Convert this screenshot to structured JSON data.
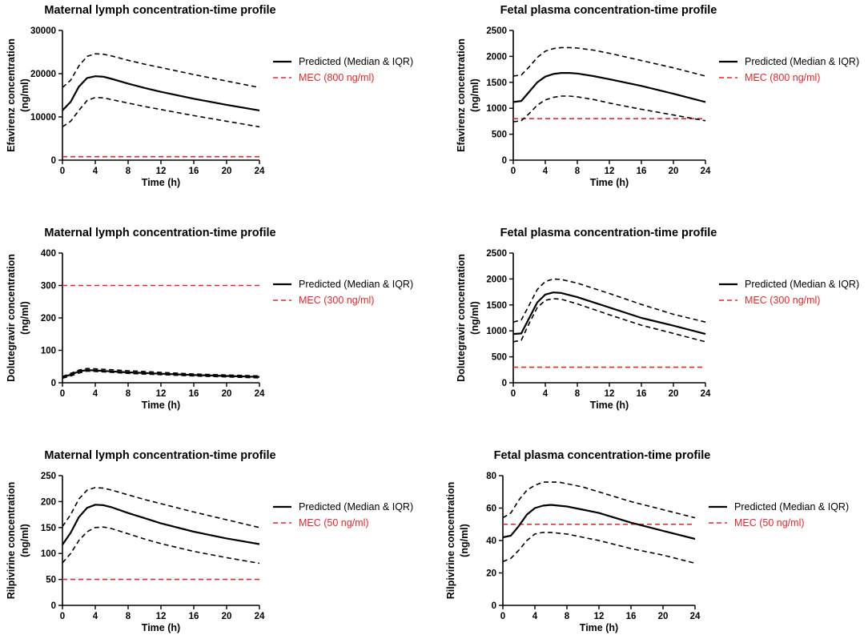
{
  "figure": {
    "colors": {
      "predicted": "#000000",
      "mec": "#e8262a",
      "axis": "#000000"
    }
  },
  "chart_data": [
    {
      "type": "line",
      "title": "Maternal lymph concentration-time profile",
      "xlabel": "Time (h)",
      "ylabel": [
        "Efavirenz concentration",
        "(ng/ml)"
      ],
      "xlim": [
        0,
        24
      ],
      "xticks": [
        0,
        4,
        8,
        12,
        16,
        20,
        24
      ],
      "ylim": [
        0,
        30000
      ],
      "yticks": [
        0,
        10000,
        20000,
        30000
      ],
      "legend": [
        "Predicted (Median & IQR)",
        "MEC (800 ng/ml)"
      ],
      "mec": 800,
      "series": [
        {
          "name": "Median",
          "style": "solid",
          "x": [
            0,
            1,
            2,
            3,
            4,
            5,
            6,
            8,
            10,
            12,
            16,
            20,
            24
          ],
          "y": [
            11500,
            13500,
            17000,
            19000,
            19400,
            19300,
            18800,
            17700,
            16700,
            15800,
            14200,
            12800,
            11500
          ]
        },
        {
          "name": "Q1",
          "style": "dashed",
          "x": [
            0,
            1,
            2,
            3,
            4,
            5,
            6,
            8,
            10,
            12,
            16,
            20,
            24
          ],
          "y": [
            7700,
            9000,
            11500,
            13800,
            14500,
            14400,
            14000,
            13200,
            12400,
            11700,
            10300,
            9000,
            7700
          ]
        },
        {
          "name": "Q3",
          "style": "dashed",
          "x": [
            0,
            1,
            2,
            3,
            4,
            5,
            6,
            8,
            10,
            12,
            16,
            20,
            24
          ],
          "y": [
            16800,
            18500,
            21800,
            24000,
            24600,
            24500,
            24100,
            23100,
            22200,
            21400,
            19800,
            18300,
            16800
          ]
        }
      ]
    },
    {
      "type": "line",
      "title": "Fetal plasma concentration-time profile",
      "xlabel": "Time (h)",
      "ylabel": [
        "Efavirenz concentration",
        "(ng/ml)"
      ],
      "xlim": [
        0,
        24
      ],
      "xticks": [
        0,
        4,
        8,
        12,
        16,
        20,
        24
      ],
      "ylim": [
        0,
        2500
      ],
      "yticks": [
        0,
        500,
        1000,
        1500,
        2000,
        2500
      ],
      "legend": [
        "Predicted (Median & IQR)",
        "MEC (800 ng/ml)"
      ],
      "mec": 800,
      "series": [
        {
          "name": "Median",
          "style": "solid",
          "x": [
            0,
            1,
            2,
            3,
            4,
            5,
            6,
            7,
            8,
            10,
            12,
            16,
            20,
            24
          ],
          "y": [
            1120,
            1140,
            1320,
            1500,
            1610,
            1660,
            1680,
            1680,
            1670,
            1620,
            1560,
            1430,
            1280,
            1120
          ]
        },
        {
          "name": "Q1",
          "style": "dashed",
          "x": [
            0,
            1,
            2,
            3,
            4,
            5,
            6,
            7,
            8,
            10,
            12,
            16,
            20,
            24
          ],
          "y": [
            740,
            760,
            900,
            1060,
            1160,
            1210,
            1235,
            1235,
            1220,
            1170,
            1100,
            980,
            870,
            760
          ]
        },
        {
          "name": "Q3",
          "style": "dashed",
          "x": [
            0,
            1,
            2,
            3,
            4,
            5,
            6,
            7,
            8,
            10,
            12,
            16,
            20,
            24
          ],
          "y": [
            1620,
            1640,
            1800,
            1980,
            2100,
            2150,
            2170,
            2170,
            2160,
            2120,
            2060,
            1920,
            1780,
            1620
          ]
        }
      ]
    },
    {
      "type": "line",
      "title": "Maternal lymph concentration-time profile",
      "xlabel": "Time (h)",
      "ylabel": [
        "Dolutegravir concentration",
        "(ng/ml)"
      ],
      "xlim": [
        0,
        24
      ],
      "xticks": [
        0,
        4,
        8,
        12,
        16,
        20,
        24
      ],
      "ylim": [
        0,
        400
      ],
      "yticks": [
        0,
        100,
        200,
        300,
        400
      ],
      "legend": [
        "Predicted (Median & IQR)",
        "MEC (300 ng/ml)"
      ],
      "mec": 300,
      "series": [
        {
          "name": "Median",
          "style": "solid",
          "x": [
            0,
            1,
            2,
            3,
            4,
            6,
            8,
            12,
            16,
            20,
            24
          ],
          "y": [
            17,
            25,
            35,
            39,
            38,
            35,
            32,
            28,
            24,
            21,
            18
          ]
        },
        {
          "name": "Q1",
          "style": "dashed",
          "x": [
            0,
            1,
            2,
            3,
            4,
            6,
            8,
            12,
            16,
            20,
            24
          ],
          "y": [
            14,
            21,
            30,
            36,
            35,
            32,
            29,
            25,
            21,
            18,
            15
          ]
        },
        {
          "name": "Q3",
          "style": "dashed",
          "x": [
            0,
            1,
            2,
            3,
            4,
            6,
            8,
            12,
            16,
            20,
            24
          ],
          "y": [
            19,
            29,
            39,
            44,
            43,
            40,
            37,
            32,
            27,
            24,
            21
          ]
        }
      ]
    },
    {
      "type": "line",
      "title": "Fetal plasma concentration-time profile",
      "xlabel": "Time (h)",
      "ylabel": [
        "Dolutegravir concentration",
        "(ng/ml)"
      ],
      "xlim": [
        0,
        24
      ],
      "xticks": [
        0,
        4,
        8,
        12,
        16,
        20,
        24
      ],
      "ylim": [
        0,
        2500
      ],
      "yticks": [
        0,
        500,
        1000,
        1500,
        2000,
        2500
      ],
      "legend": [
        "Predicted (Median & IQR)",
        "MEC (300 ng/ml)"
      ],
      "mec": 300,
      "series": [
        {
          "name": "Median",
          "style": "solid",
          "x": [
            0,
            1,
            2,
            3,
            4,
            5,
            6,
            8,
            12,
            16,
            20,
            24
          ],
          "y": [
            940,
            950,
            1250,
            1550,
            1700,
            1740,
            1730,
            1650,
            1450,
            1250,
            1100,
            940
          ]
        },
        {
          "name": "Q1",
          "style": "dashed",
          "x": [
            0,
            1,
            2,
            3,
            4,
            5,
            6,
            8,
            12,
            16,
            20,
            24
          ],
          "y": [
            790,
            820,
            1150,
            1450,
            1590,
            1620,
            1610,
            1520,
            1310,
            1110,
            950,
            790
          ]
        },
        {
          "name": "Q3",
          "style": "dashed",
          "x": [
            0,
            1,
            2,
            3,
            4,
            5,
            6,
            8,
            12,
            16,
            20,
            24
          ],
          "y": [
            1170,
            1210,
            1500,
            1800,
            1950,
            2000,
            1990,
            1920,
            1720,
            1510,
            1320,
            1170
          ]
        }
      ]
    },
    {
      "type": "line",
      "title": "Maternal lymph concentration-time profile",
      "xlabel": "Time (h)",
      "ylabel": [
        "Rilpivirine concentration",
        "(ng/ml)"
      ],
      "xlim": [
        0,
        24
      ],
      "xticks": [
        0,
        4,
        8,
        12,
        16,
        20,
        24
      ],
      "ylim": [
        0,
        250
      ],
      "yticks": [
        0,
        50,
        100,
        150,
        200,
        250
      ],
      "legend": [
        "Predicted (Median & IQR)",
        "MEC (50 ng/ml)"
      ],
      "mec": 50,
      "series": [
        {
          "name": "Median",
          "style": "solid",
          "x": [
            0,
            1,
            2,
            3,
            4,
            5,
            6,
            8,
            10,
            12,
            16,
            20,
            24
          ],
          "y": [
            117,
            140,
            170,
            188,
            194,
            193,
            189,
            178,
            168,
            158,
            142,
            129,
            118
          ]
        },
        {
          "name": "Q1",
          "style": "dashed",
          "x": [
            0,
            1,
            2,
            3,
            4,
            5,
            6,
            8,
            10,
            12,
            16,
            20,
            24
          ],
          "y": [
            82,
            100,
            125,
            142,
            150,
            151,
            148,
            138,
            128,
            119,
            104,
            92,
            81
          ]
        },
        {
          "name": "Q3",
          "style": "dashed",
          "x": [
            0,
            1,
            2,
            3,
            4,
            5,
            6,
            8,
            10,
            12,
            16,
            20,
            24
          ],
          "y": [
            152,
            175,
            205,
            222,
            227,
            226,
            222,
            213,
            204,
            196,
            180,
            165,
            150
          ]
        }
      ]
    },
    {
      "type": "line",
      "title": "Fetal plasma concentration-time profile",
      "xlabel": "Time (h)",
      "ylabel": [
        "Rilpivirine concentration",
        "(ng/ml)"
      ],
      "xlim": [
        0,
        24
      ],
      "xticks": [
        0,
        4,
        8,
        12,
        16,
        20,
        24
      ],
      "ylim": [
        0,
        80
      ],
      "yticks": [
        0,
        20,
        40,
        60,
        80
      ],
      "legend": [
        "Predicted (Median & IQR)",
        "MEC (50 ng/ml)"
      ],
      "mec": 50,
      "series": [
        {
          "name": "Median",
          "style": "solid",
          "x": [
            0,
            1,
            2,
            3,
            4,
            5,
            6,
            7,
            8,
            10,
            12,
            16,
            20,
            24
          ],
          "y": [
            42,
            43,
            49,
            56,
            60,
            61.5,
            62,
            61.5,
            61,
            59,
            57,
            51,
            46,
            41
          ]
        },
        {
          "name": "Q1",
          "style": "dashed",
          "x": [
            0,
            1,
            2,
            3,
            4,
            5,
            6,
            7,
            8,
            10,
            12,
            16,
            20,
            24
          ],
          "y": [
            27,
            29,
            34,
            40,
            44,
            45,
            45,
            44.5,
            44,
            42,
            40,
            35,
            31,
            26
          ]
        },
        {
          "name": "Q3",
          "style": "dashed",
          "x": [
            0,
            1,
            2,
            3,
            4,
            5,
            6,
            7,
            8,
            10,
            12,
            16,
            20,
            24
          ],
          "y": [
            54,
            57,
            65,
            71,
            74,
            76,
            76,
            76,
            75,
            73,
            70,
            64,
            59,
            54
          ]
        }
      ]
    }
  ]
}
